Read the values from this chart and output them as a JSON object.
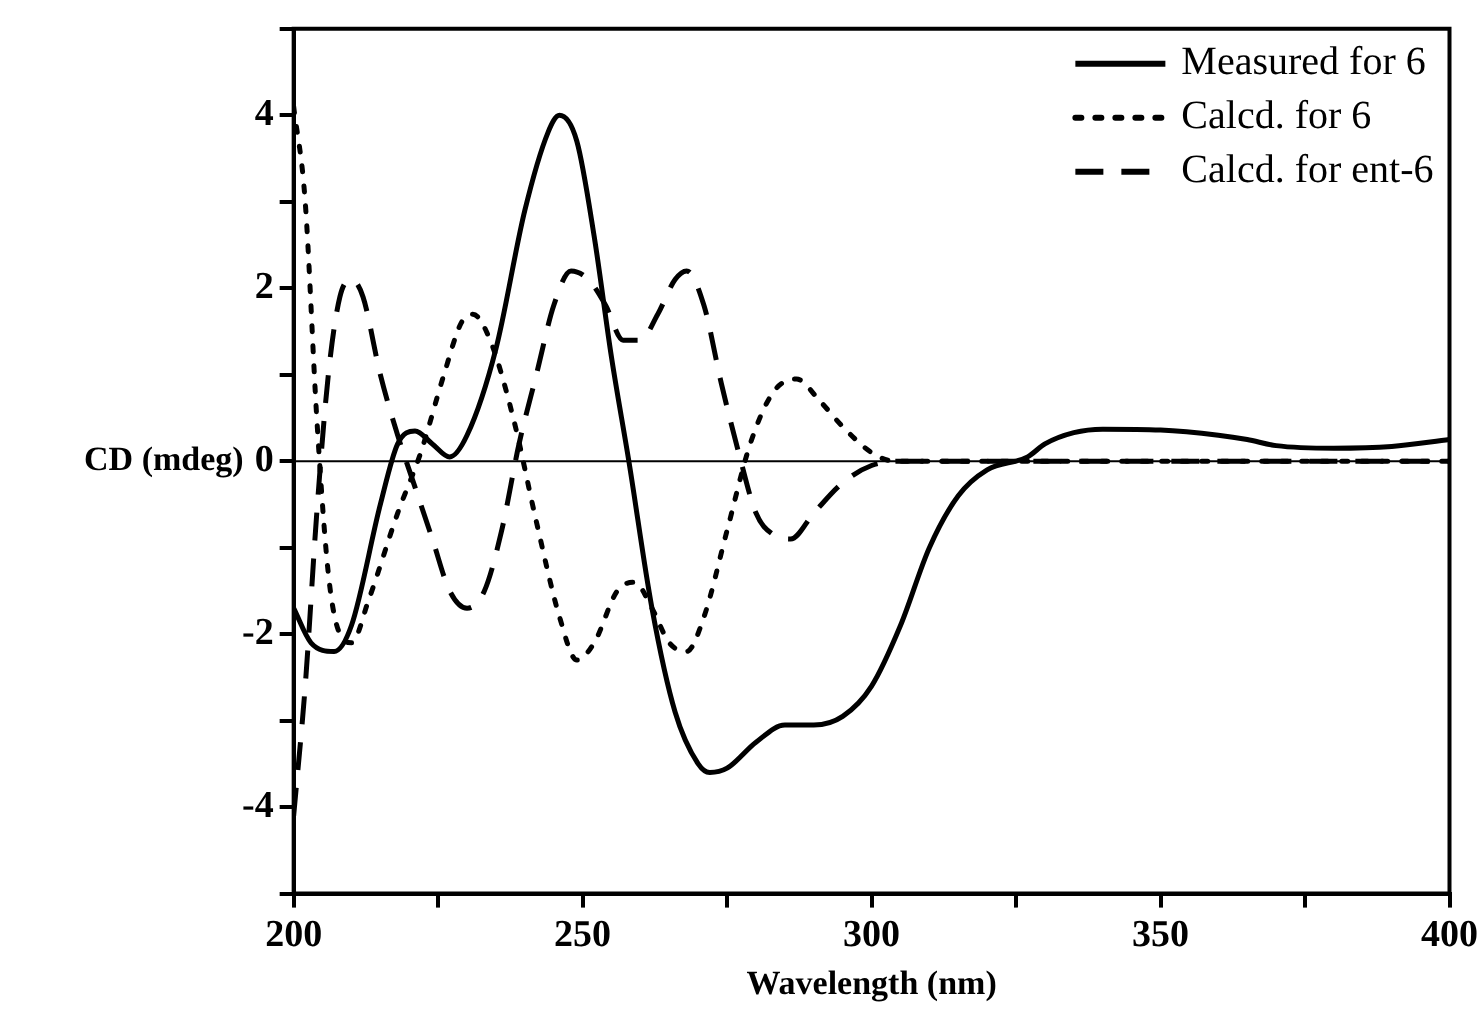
{
  "chart_data": {
    "type": "line",
    "xlabel": "Wavelength (nm)",
    "ylabel": "CD (mdeg)",
    "xlim": [
      200,
      400
    ],
    "xticks": [
      200,
      {
        "value": 225,
        "label": null
      },
      250,
      {
        "value": 275,
        "label": null
      },
      300,
      {
        "value": 325,
        "label": null
      },
      350,
      {
        "value": 375,
        "label": null
      },
      400
    ],
    "ylim": [
      -5,
      5
    ],
    "yticks": [
      {
        "value": -5,
        "label": null
      },
      -4,
      {
        "value": -3,
        "label": null
      },
      -2,
      {
        "value": -1,
        "label": null
      },
      0,
      {
        "value": 1,
        "label": null
      },
      2,
      {
        "value": 3,
        "label": null
      },
      4,
      {
        "value": 5,
        "label": null
      }
    ],
    "grid": false,
    "legend": "top right",
    "marker": "none",
    "ref_lines": [
      {
        "axis": "y",
        "value": 0,
        "color": "#000000"
      }
    ],
    "series": [
      {
        "name": "Measured for 6",
        "color": "#000000",
        "line_style": "solid",
        "x": [
          200,
          203,
          207,
          210,
          215,
          218,
          221,
          224,
          227,
          230,
          235,
          240,
          244,
          246,
          249,
          252,
          255,
          258,
          262,
          266,
          270,
          272,
          275,
          280,
          285,
          290,
          295,
          300,
          305,
          310,
          315,
          320,
          327,
          330,
          335,
          340,
          350,
          360,
          365,
          370,
          380,
          390,
          400
        ],
        "values": [
          -1.7,
          -2.1,
          -2.2,
          -1.9,
          -0.5,
          0.2,
          0.35,
          0.2,
          0.05,
          0.3,
          1.3,
          2.9,
          3.8,
          4.0,
          3.7,
          2.6,
          1.2,
          0,
          -1.7,
          -2.9,
          -3.5,
          -3.6,
          -3.55,
          -3.25,
          -3.05,
          -3.05,
          -2.95,
          -2.6,
          -1.9,
          -1.0,
          -0.4,
          -0.1,
          0.05,
          0.2,
          0.33,
          0.37,
          0.36,
          0.3,
          0.25,
          0.18,
          0.15,
          0.17,
          0.25
        ]
      },
      {
        "name": "Calcd. for 6",
        "color": "#000000",
        "line_style": "dotted",
        "x": [
          200,
          202,
          204,
          206,
          208,
          210,
          213,
          218,
          222,
          226,
          229,
          231,
          234,
          238,
          242,
          246,
          249,
          252,
          256,
          259,
          262,
          265,
          268,
          271,
          275,
          279,
          283,
          287,
          291,
          295,
          300,
          304,
          400
        ],
        "values": [
          4.1,
          3.0,
          0.5,
          -1.3,
          -2.0,
          -2.1,
          -1.6,
          -0.6,
          0.1,
          1.0,
          1.6,
          1.7,
          1.4,
          0.5,
          -0.7,
          -1.8,
          -2.3,
          -2.1,
          -1.5,
          -1.4,
          -1.7,
          -2.1,
          -2.2,
          -1.8,
          -0.8,
          0.2,
          0.8,
          0.95,
          0.7,
          0.4,
          0.1,
          0,
          0
        ]
      },
      {
        "name": "Calcd. for ent-6",
        "color": "#000000",
        "line_style": "dashed",
        "x": [
          200,
          202,
          204,
          206,
          208,
          210,
          212,
          215,
          218,
          221,
          224,
          227,
          230,
          233,
          236,
          239,
          242,
          245,
          248,
          251,
          254,
          257,
          260,
          263,
          266,
          268,
          271,
          274,
          277,
          280,
          283,
          286,
          290,
          295,
          300,
          305,
          400
        ],
        "values": [
          -4.1,
          -2.6,
          -0.6,
          1.0,
          1.9,
          2.1,
          1.9,
          1.0,
          0.3,
          -0.3,
          -0.9,
          -1.5,
          -1.7,
          -1.5,
          -0.8,
          0.2,
          1.0,
          1.8,
          2.2,
          2.1,
          1.8,
          1.4,
          1.4,
          1.7,
          2.1,
          2.2,
          1.8,
          0.9,
          0.1,
          -0.6,
          -0.85,
          -0.9,
          -0.6,
          -0.25,
          -0.05,
          0,
          0
        ]
      }
    ]
  }
}
